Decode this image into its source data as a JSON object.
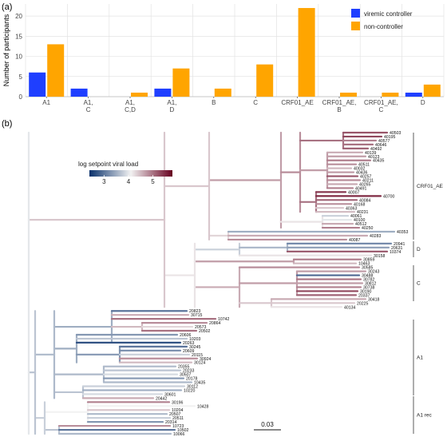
{
  "panel_a_label": "(a)",
  "panel_b_label": "(b)",
  "colors": {
    "viremic": "#1f3fff",
    "noncontroller": "#ffa500",
    "grid": "#e3e3e3",
    "axis": "#555555",
    "clade_line": "#333333",
    "low_load": "#08306b",
    "mid_load": "#f2f2f2",
    "high_load": "#67001f"
  },
  "chart_data": [
    {
      "type": "bar",
      "ylabel": "Number of participants",
      "xlabel": "",
      "ylim": [
        0,
        23
      ],
      "yticks": [
        0,
        5,
        10,
        15,
        20
      ],
      "grid": true,
      "legend_position": "top-right",
      "categories": [
        "A1",
        "A1,\nC",
        "A1,\nC,D",
        "A1,\nD",
        "B",
        "C",
        "CRF01_AE",
        "CRF01_AE,\nB",
        "CRF01_AE,\nC",
        "D"
      ],
      "series": [
        {
          "name": "viremic controller",
          "color": "#1f3fff",
          "values": [
            6,
            2,
            0,
            2,
            0,
            0,
            0,
            0,
            0,
            1
          ]
        },
        {
          "name": "non-controller",
          "color": "#ffa500",
          "values": [
            13,
            0,
            1,
            7,
            2,
            8,
            22,
            1,
            1,
            3
          ]
        }
      ]
    },
    {
      "type": "phylogenetic-tree",
      "legend": {
        "title": "log setpoint viral load",
        "ticks": [
          3,
          4,
          5
        ],
        "range": [
          2.4,
          5.8
        ]
      },
      "scale_bar": "0.03",
      "clades": [
        "CRF01_AE",
        "D",
        "C",
        "A1",
        "A1 rec"
      ],
      "tips": [
        {
          "id": "40503",
          "v": 5.2
        },
        {
          "id": "40195",
          "v": 5.3
        },
        {
          "id": "40577",
          "v": 4.9
        },
        {
          "id": "40646",
          "v": 5.0
        },
        {
          "id": "40492",
          "v": 5.1
        },
        {
          "id": "40139",
          "v": 4.6
        },
        {
          "id": "40123",
          "v": 4.7
        },
        {
          "id": "40435",
          "v": 4.9
        },
        {
          "id": "40511",
          "v": 4.8
        },
        {
          "id": "40032",
          "v": 4.5
        },
        {
          "id": "40436",
          "v": 4.7
        },
        {
          "id": "40257",
          "v": 5.2
        },
        {
          "id": "40211",
          "v": 4.8
        },
        {
          "id": "40265",
          "v": 4.6
        },
        {
          "id": "40491",
          "v": 4.9
        },
        {
          "id": "40007",
          "v": 5.4
        },
        {
          "id": "40700",
          "v": 5.5
        },
        {
          "id": "40084",
          "v": 5.1
        },
        {
          "id": "40168",
          "v": 4.8
        },
        {
          "id": "40363",
          "v": 4.4
        },
        {
          "id": "40231",
          "v": 4.5
        },
        {
          "id": "40061",
          "v": 3.8
        },
        {
          "id": "40100",
          "v": 4.0
        },
        {
          "id": "40512",
          "v": 4.6
        },
        {
          "id": "40250",
          "v": 4.9
        },
        {
          "id": "40353",
          "v": 3.5
        },
        {
          "id": "40283",
          "v": 4.6
        },
        {
          "id": "40087",
          "v": 4.8
        },
        {
          "id": "20941",
          "v": 3.2
        },
        {
          "id": "20631",
          "v": 3.4
        },
        {
          "id": "10374",
          "v": 5.2
        },
        {
          "id": "30158",
          "v": 4.2
        },
        {
          "id": "30859",
          "v": 4.9
        },
        {
          "id": "10463",
          "v": 4.5
        },
        {
          "id": "30585",
          "v": 4.8
        },
        {
          "id": "30243",
          "v": 4.7
        },
        {
          "id": "30488",
          "v": 2.9
        },
        {
          "id": "30782",
          "v": 5.0
        },
        {
          "id": "30812",
          "v": 4.7
        },
        {
          "id": "30738",
          "v": 4.9
        },
        {
          "id": "30190",
          "v": 5.3
        },
        {
          "id": "20337",
          "v": 5.1
        },
        {
          "id": "30418",
          "v": 4.6
        },
        {
          "id": "20225",
          "v": 4.4
        },
        {
          "id": "40134",
          "v": 4.2
        },
        {
          "id": "20823",
          "v": 3.0
        },
        {
          "id": "30715",
          "v": 4.6
        },
        {
          "id": "10742",
          "v": 5.0
        },
        {
          "id": "20864",
          "v": 4.8
        },
        {
          "id": "20573",
          "v": 4.3
        },
        {
          "id": "20502",
          "v": 5.0
        },
        {
          "id": "20606",
          "v": 3.3
        },
        {
          "id": "10203",
          "v": 3.7
        },
        {
          "id": "20263",
          "v": 2.7
        },
        {
          "id": "30245",
          "v": 3.0
        },
        {
          "id": "20609",
          "v": 3.2
        },
        {
          "id": "20115",
          "v": 3.8
        },
        {
          "id": "30924",
          "v": 4.8
        },
        {
          "id": "30124",
          "v": 4.5
        },
        {
          "id": "20355",
          "v": 3.6
        },
        {
          "id": "20233",
          "v": 3.7
        },
        {
          "id": "30507",
          "v": 3.9
        },
        {
          "id": "20178",
          "v": 3.3
        },
        {
          "id": "10435",
          "v": 3.6
        },
        {
          "id": "30112",
          "v": 3.8
        },
        {
          "id": "10220",
          "v": 3.5
        },
        {
          "id": "30601",
          "v": 3.9
        },
        {
          "id": "20442",
          "v": 4.6
        },
        {
          "id": "30196",
          "v": 4.9
        },
        {
          "id": "10428",
          "v": 4.1
        },
        {
          "id": "10204",
          "v": 4.4
        },
        {
          "id": "20507",
          "v": 3.6
        },
        {
          "id": "20511",
          "v": 3.8
        },
        {
          "id": "20314",
          "v": 3.3
        },
        {
          "id": "10723",
          "v": 4.8
        },
        {
          "id": "10502",
          "v": 3.0
        },
        {
          "id": "10066",
          "v": 3.6
        }
      ]
    }
  ]
}
